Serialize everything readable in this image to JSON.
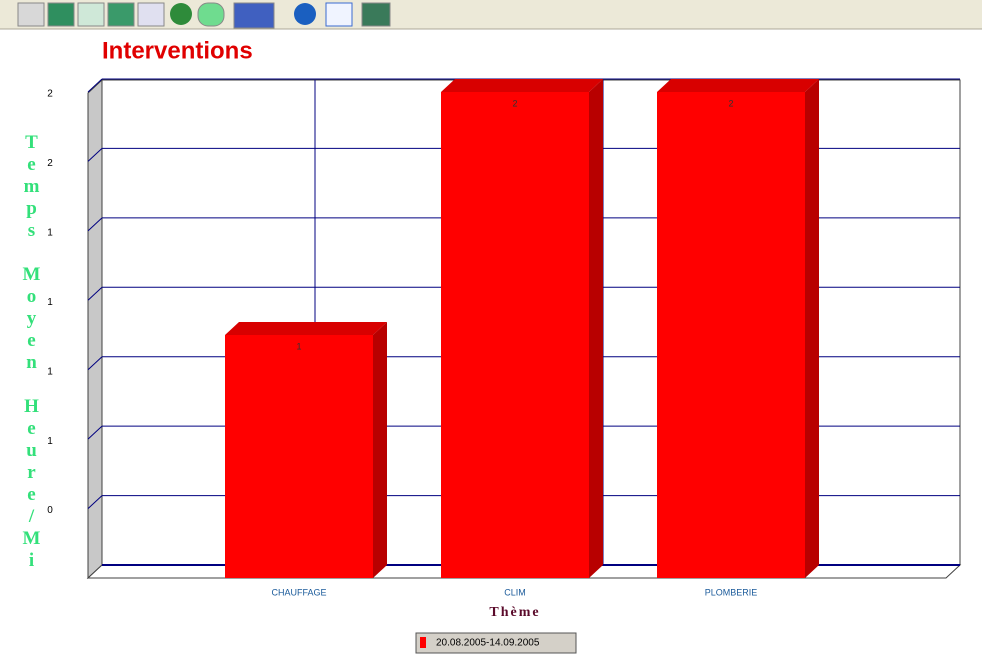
{
  "chart_data": {
    "type": "bar",
    "title": "Interventions",
    "x_label": "Thème",
    "y_label": "Temps Moyen Heure/Mi",
    "categories": [
      "CHAUFFAGE",
      "CLIM",
      "PLOMBERIE"
    ],
    "series": [
      {
        "name": "20.08.2005-14.09.2005",
        "color": "#ff0000",
        "values": [
          1,
          2,
          2
        ]
      }
    ],
    "ylim": [
      0,
      2
    ],
    "yticks": [
      {
        "value": 0.2857,
        "label": "0"
      },
      {
        "value": 0.5714,
        "label": "1"
      },
      {
        "value": 0.8571,
        "label": "1"
      },
      {
        "value": 1.1429,
        "label": "1"
      },
      {
        "value": 1.4286,
        "label": "1"
      },
      {
        "value": 1.7143,
        "label": "2"
      },
      {
        "value": 2,
        "label": "2"
      }
    ],
    "grid": true
  }
}
